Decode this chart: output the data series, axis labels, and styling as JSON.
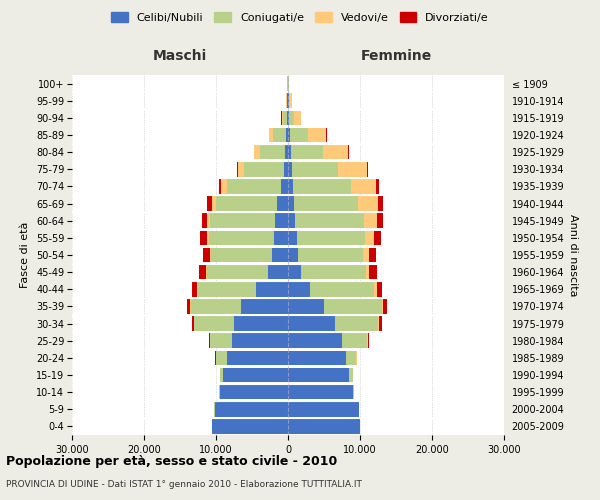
{
  "age_groups": [
    "0-4",
    "5-9",
    "10-14",
    "15-19",
    "20-24",
    "25-29",
    "30-34",
    "35-39",
    "40-44",
    "45-49",
    "50-54",
    "55-59",
    "60-64",
    "65-69",
    "70-74",
    "75-79",
    "80-84",
    "85-89",
    "90-94",
    "95-99",
    "100+"
  ],
  "birth_years": [
    "2005-2009",
    "2000-2004",
    "1995-1999",
    "1990-1994",
    "1985-1989",
    "1980-1984",
    "1975-1979",
    "1970-1974",
    "1965-1969",
    "1960-1964",
    "1955-1959",
    "1950-1954",
    "1945-1949",
    "1940-1944",
    "1935-1939",
    "1930-1934",
    "1925-1929",
    "1920-1924",
    "1915-1919",
    "1910-1914",
    "≤ 1909"
  ],
  "male": {
    "celibe": [
      10500,
      10200,
      9500,
      9000,
      8500,
      7800,
      7500,
      6500,
      4500,
      2800,
      2200,
      2000,
      1800,
      1500,
      1000,
      600,
      400,
      300,
      200,
      100,
      50
    ],
    "coniugato": [
      30,
      50,
      100,
      400,
      1500,
      3000,
      5500,
      7000,
      8000,
      8500,
      8500,
      9000,
      9000,
      8500,
      7500,
      5500,
      3500,
      1800,
      500,
      100,
      50
    ],
    "vedovo": [
      1,
      2,
      5,
      10,
      20,
      30,
      50,
      80,
      100,
      150,
      200,
      300,
      400,
      600,
      800,
      900,
      800,
      500,
      200,
      50,
      10
    ],
    "divorziato": [
      2,
      5,
      10,
      30,
      80,
      150,
      300,
      500,
      700,
      900,
      900,
      900,
      800,
      600,
      300,
      100,
      60,
      40,
      20,
      10,
      5
    ]
  },
  "female": {
    "nubile": [
      10000,
      9800,
      9000,
      8500,
      8000,
      7500,
      6500,
      5000,
      3000,
      1800,
      1400,
      1200,
      1000,
      900,
      700,
      500,
      400,
      300,
      200,
      100,
      50
    ],
    "coniugata": [
      30,
      60,
      150,
      500,
      1500,
      3500,
      6000,
      8000,
      9000,
      9000,
      9000,
      9500,
      9500,
      8800,
      8000,
      6500,
      4500,
      2500,
      600,
      100,
      30
    ],
    "vedova": [
      2,
      4,
      8,
      15,
      30,
      60,
      120,
      200,
      300,
      500,
      800,
      1200,
      1800,
      2800,
      3500,
      4000,
      3500,
      2500,
      1000,
      300,
      100
    ],
    "divorziata": [
      2,
      5,
      15,
      40,
      100,
      200,
      400,
      600,
      800,
      1000,
      1000,
      1000,
      900,
      700,
      400,
      150,
      80,
      50,
      20,
      10,
      5
    ]
  },
  "colors": {
    "celibe": "#4472c4",
    "coniugato": "#b8d08a",
    "vedovo": "#ffc97a",
    "divorziato": "#cc0000"
  },
  "xlim": 30000,
  "title": "Popolazione per età, sesso e stato civile - 2010",
  "subtitle": "PROVINCIA DI UDINE - Dati ISTAT 1° gennaio 2010 - Elaborazione TUTTITALIA.IT",
  "ylabel_left": "Fasce di età",
  "ylabel_right": "Anni di nascita",
  "label_maschi": "Maschi",
  "label_femmine": "Femmine",
  "legend_labels": [
    "Celibi/Nubili",
    "Coniugati/e",
    "Vedovi/e",
    "Divorziati/e"
  ],
  "background_color": "#eeede5",
  "plot_background": "#ffffff"
}
